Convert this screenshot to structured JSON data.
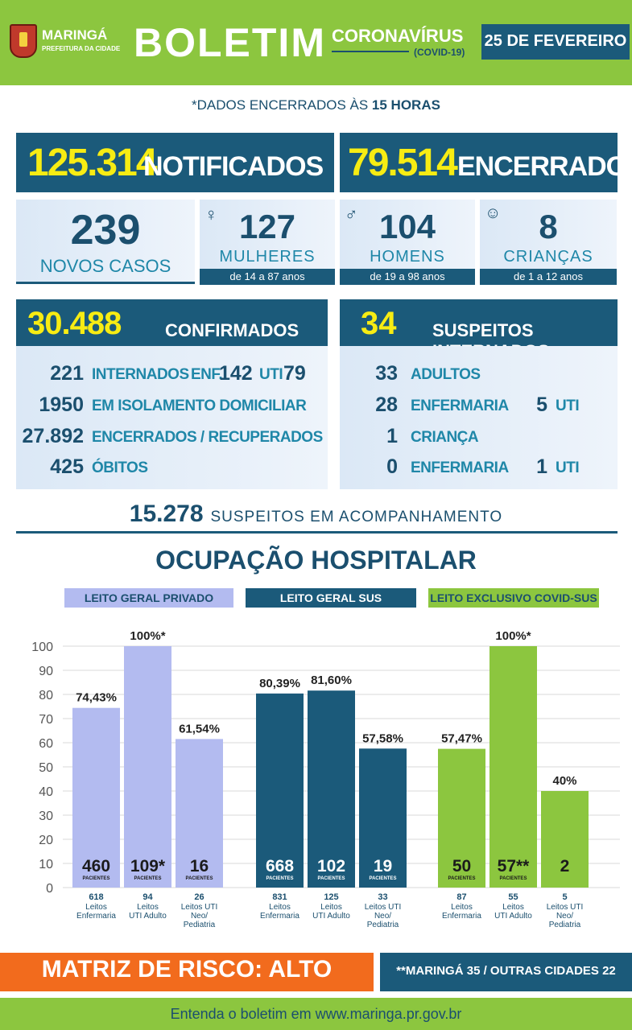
{
  "header": {
    "city": "MARINGÁ",
    "city_sub": "PREFEITURA DA CIDADE",
    "title": "BOLETIM",
    "topic": "CORONAVÍRUS",
    "topic_sub": "(COVID-19)",
    "date": "25 DE FEVEREIRO"
  },
  "subtitle_pre": "*DADOS ENCERRADOS ÀS ",
  "subtitle_bold": "15 HORAS",
  "notificados": {
    "value": "125.314",
    "label": "NOTIFICADOS"
  },
  "encerrados": {
    "value": "79.514",
    "label": "ENCERRADOS"
  },
  "novos_casos": {
    "value": "239",
    "label": "NOVOS CASOS"
  },
  "mulheres": {
    "value": "127",
    "label": "MULHERES",
    "age": "de 14 a 87 anos"
  },
  "homens": {
    "value": "104",
    "label": "HOMENS",
    "age": "de 19 a 98 anos"
  },
  "criancas": {
    "value": "8",
    "label": "CRIANÇAS",
    "age": "de 1 a 12 anos"
  },
  "confirmados": {
    "value": "30.488",
    "label": "CONFIRMADOS",
    "rows": [
      {
        "num": "221",
        "label": "INTERNADOS"
      },
      {
        "num": "1950",
        "label": "EM ISOLAMENTO DOMICILIAR"
      },
      {
        "num": "27.892",
        "label": "ENCERRADOS / RECUPERADOS"
      },
      {
        "num": "425",
        "label": "ÓBITOS"
      }
    ],
    "enf_label": "ENF.",
    "enf_value": "142",
    "uti_label": "UTI",
    "uti_value": "79"
  },
  "suspeitos": {
    "value": "34",
    "label": "SUSPEITOS INTERNADOS",
    "rows": [
      {
        "num": "33",
        "label": "ADULTOS"
      },
      {
        "num": "28",
        "label": "ENFERMARIA",
        "extra_num": "5",
        "extra_label": "UTI"
      },
      {
        "num": "1",
        "label": "CRIANÇA"
      },
      {
        "num": "0",
        "label": "ENFERMARIA",
        "extra_num": "1",
        "extra_label": "UTI"
      }
    ]
  },
  "acompanhamento": {
    "value": "15.278",
    "label": "SUSPEITOS EM ACOMPANHAMENTO"
  },
  "ocupacao_title": "OCUPAÇÃO HOSPITALAR",
  "colors": {
    "navy": "#1b5a7a",
    "green": "#8cc63f",
    "lavender": "#b3bbf0",
    "yellow": "#f7ec13",
    "orange": "#f26b1d",
    "cyan": "#1f87a8"
  },
  "chart_data": {
    "type": "bar",
    "ylim": [
      0,
      100
    ],
    "yticks": [
      0,
      10,
      20,
      30,
      40,
      50,
      60,
      70,
      80,
      90,
      100
    ],
    "pacientes_label": "PACIENTES",
    "groups": [
      {
        "name": "LEITO GERAL PRIVADO",
        "color": "#b3bbf0",
        "bars": [
          {
            "value": 74.43,
            "label": "74,43%",
            "patients": "460",
            "beds": "618",
            "cat": [
              "Leitos",
              "Enfermaria"
            ]
          },
          {
            "value": 100,
            "label": "100%*",
            "patients": "109*",
            "beds": "94",
            "cat": [
              "Leitos",
              "UTI Adulto"
            ]
          },
          {
            "value": 61.54,
            "label": "61,54%",
            "patients": "16",
            "beds": "26",
            "cat": [
              "Leitos UTI",
              "Neo/",
              "Pediatria"
            ]
          }
        ]
      },
      {
        "name": "LEITO GERAL SUS",
        "color": "#1b5a7a",
        "bars": [
          {
            "value": 80.39,
            "label": "80,39%",
            "patients": "668",
            "beds": "831",
            "cat": [
              "Leitos",
              "Enfermaria"
            ]
          },
          {
            "value": 81.6,
            "label": "81,60%",
            "patients": "102",
            "beds": "125",
            "cat": [
              "Leitos",
              "UTI Adulto"
            ]
          },
          {
            "value": 57.58,
            "label": "57,58%",
            "patients": "19",
            "beds": "33",
            "cat": [
              "Leitos UTI",
              "Neo/",
              "Pediatria"
            ]
          }
        ]
      },
      {
        "name": "LEITO EXCLUSIVO COVID-SUS",
        "color": "#8cc63f",
        "bars": [
          {
            "value": 57.47,
            "label": "57,47%",
            "patients": "50",
            "beds": "87",
            "cat": [
              "Leitos",
              "Enfermaria"
            ]
          },
          {
            "value": 100,
            "label": "100%*",
            "patients": "57**",
            "beds": "55",
            "cat": [
              "Leitos",
              "UTI Adulto"
            ]
          },
          {
            "value": 40,
            "label": "40%",
            "patients": "2",
            "beds": "5",
            "cat": [
              "Leitos UTI",
              "Neo/",
              "Pediatria"
            ]
          }
        ]
      }
    ]
  },
  "matriz_risco": "MATRIZ DE RISCO: ALTO",
  "nota": "**MARINGÁ 35 / OUTRAS CIDADES 22",
  "rodape": "Entenda o boletim em www.maringa.pr.gov.br"
}
